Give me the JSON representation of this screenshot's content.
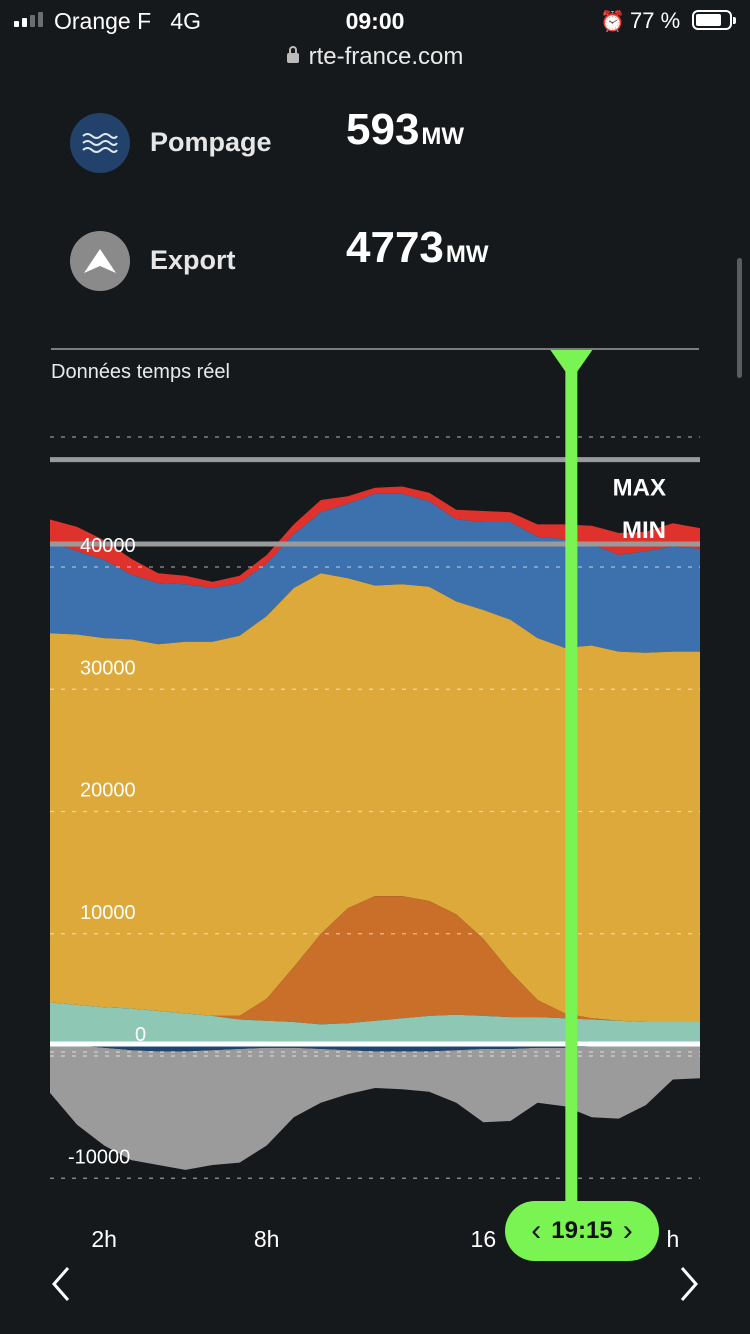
{
  "status_bar": {
    "carrier": "Orange F",
    "network": "4G",
    "time": "09:00",
    "battery_pct": "77 %",
    "battery_level": 0.77
  },
  "browser": {
    "url": "rte-france.com"
  },
  "metrics": [
    {
      "label": "Pompage",
      "value": "593",
      "unit": "MW",
      "icon": "waves-icon",
      "icon_color": "#22426b"
    },
    {
      "label": "Export",
      "value": "4773",
      "unit": "MW",
      "icon": "export-arrow-icon",
      "icon_color": "#8a8a8a"
    }
  ],
  "chart_title": "Données temps réel",
  "cursor": {
    "time_label": "19:15",
    "hour": 19.25,
    "color": "#79f453"
  },
  "chart_data": {
    "type": "area",
    "x_tick_labels": [
      "2h",
      "8h",
      "16",
      "h"
    ],
    "x_tick_hours": [
      2,
      8,
      16,
      23
    ],
    "x_range_hours": [
      0,
      24
    ],
    "y_tick_labels": [
      "40000",
      "30000",
      "20000",
      "10000",
      "0",
      "-10000"
    ],
    "y_ticks": [
      40000,
      30000,
      20000,
      10000,
      0,
      -10000
    ],
    "ylim": [
      -11500,
      49000
    ],
    "grid": "dashed horizontal",
    "reference_lines": [
      {
        "label": "MAX",
        "value": 47800,
        "color": "#9a9a9a"
      },
      {
        "label": "MIN",
        "value": 40900,
        "color": "#9a9a9a"
      }
    ],
    "hours": [
      0,
      1,
      2,
      3,
      4,
      5,
      6,
      7,
      8,
      9,
      10,
      11,
      12,
      13,
      14,
      15,
      16,
      17,
      18,
      19,
      20,
      21,
      22,
      23,
      24
    ],
    "series": [
      {
        "key": "base",
        "color": "#8ec7b4",
        "values": [
          3400,
          3200,
          3000,
          2900,
          2700,
          2500,
          2300,
          2000,
          1900,
          1800,
          1600,
          1700,
          1900,
          2100,
          2300,
          2400,
          2300,
          2200,
          2200,
          2100,
          2000,
          1900,
          1800,
          1800,
          1800
        ]
      },
      {
        "key": "solar",
        "color": "#c96f2a",
        "values": [
          0,
          0,
          0,
          0,
          0,
          0,
          0,
          300,
          1800,
          4500,
          7400,
          9400,
          10200,
          10000,
          9400,
          8200,
          6300,
          3700,
          1400,
          400,
          100,
          0,
          0,
          0,
          0
        ]
      },
      {
        "key": "mid",
        "color": "#dca93a",
        "values": [
          30200,
          30300,
          30200,
          30200,
          30000,
          30400,
          30600,
          31100,
          31300,
          31000,
          29500,
          27000,
          25400,
          25500,
          25700,
          25600,
          26900,
          28800,
          29600,
          29900,
          30500,
          30200,
          30200,
          30300,
          30300
        ]
      },
      {
        "key": "import",
        "color": "#3d71ad",
        "values": [
          7500,
          6800,
          6400,
          5300,
          5000,
          4700,
          4400,
          4300,
          4300,
          4400,
          5000,
          6100,
          7500,
          7400,
          7000,
          6700,
          7200,
          8000,
          8300,
          8900,
          8300,
          7900,
          8300,
          8600,
          8400
        ]
      },
      {
        "key": "peak",
        "color": "#e0322d",
        "values": [
          1800,
          2000,
          1600,
          1300,
          800,
          700,
          500,
          600,
          700,
          800,
          1000,
          600,
          500,
          600,
          700,
          800,
          900,
          800,
          1000,
          1200,
          1500,
          1800,
          1600,
          1900,
          1700
        ]
      },
      {
        "key": "exchange_neg",
        "color": "#9b9b9b",
        "values": [
          -4000,
          -6500,
          -8000,
          -9000,
          -9300,
          -9700,
          -9400,
          -9300,
          -8000,
          -5700,
          -4400,
          -3600,
          -3000,
          -3100,
          -3300,
          -4300,
          -6000,
          -5900,
          -4500,
          -4800,
          -5800,
          -6000,
          -5000,
          -2900,
          -2800
        ]
      },
      {
        "key": "pumping_neg",
        "color": "#1e4470",
        "values": [
          0,
          -100,
          -300,
          -500,
          -600,
          -600,
          -500,
          -400,
          -300,
          -300,
          -400,
          -500,
          -600,
          -600,
          -600,
          -500,
          -400,
          -400,
          -300,
          -300,
          -200,
          -100,
          0,
          0,
          0
        ]
      }
    ]
  },
  "nav": {
    "prev": "previous-arrow",
    "next": "next-arrow"
  }
}
